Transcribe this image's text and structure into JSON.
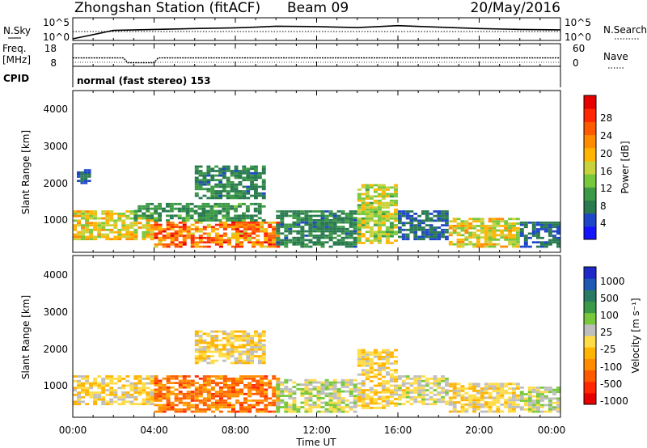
{
  "header": {
    "station": "Zhongshan Station (fitACF)",
    "beam": "Beam 09",
    "date": "20/May/2016"
  },
  "sky_panel": {
    "left_label": "N.Sky",
    "right_label": "N.Search",
    "tick_top": "10^5",
    "tick_bottom": "10^0",
    "right_tick_top": "10^5",
    "right_tick_bottom": "10^0"
  },
  "freq_panel": {
    "left_label_top": "Freq.",
    "left_label_bottom": "[MHz]",
    "right_label": "Nave",
    "tick_top": "18",
    "tick_bottom": "8",
    "right_tick_top": "60",
    "right_tick_bottom": "0"
  },
  "cpid_panel": {
    "label": "CPID",
    "text": "normal (fast stereo) 153"
  },
  "time_axis": {
    "label": "Time UT",
    "ticks": [
      "00:00",
      "04:00",
      "08:00",
      "12:00",
      "16:00",
      "20:00",
      "00:00"
    ]
  },
  "power_panel": {
    "ylabel": "Slant Range [km]",
    "yticks": [
      "4000",
      "3000",
      "2000",
      "1000"
    ],
    "colorbar_label": "Power [dB]",
    "colorbar_ticks": [
      "28",
      "24",
      "20",
      "16",
      "12",
      "8",
      "4"
    ],
    "colorbar_colors": [
      "#1414ff",
      "#1e46c8",
      "#2a7a50",
      "#3c9a46",
      "#78c83c",
      "#c8d23c",
      "#ffb400",
      "#ff8c00",
      "#ff5a00",
      "#ff2800",
      "#e60000"
    ]
  },
  "velocity_panel": {
    "ylabel": "Slant Range [km]",
    "yticks": [
      "4000",
      "3000",
      "2000",
      "1000"
    ],
    "colorbar_label": "Velocity [m s⁻¹]",
    "colorbar_ticks": [
      "1000",
      "500",
      "100",
      "25",
      "-25",
      "-100",
      "-500",
      "-1000"
    ],
    "colorbar_colors": [
      "#1e2ac8",
      "#1e5ab4",
      "#2a7a64",
      "#3c9a46",
      "#78c83c",
      "#bebebe",
      "#ffdc46",
      "#ffb400",
      "#ff8c00",
      "#ff5a00",
      "#ff2800",
      "#e60000"
    ]
  },
  "chart_data": [
    {
      "type": "line",
      "title": "Zhongshan Station (fitACF) Beam 09",
      "xlabel": "Time UT",
      "xlim": [
        "00:00",
        "24:00"
      ],
      "yscale": "log",
      "series": [
        {
          "name": "N.Sky",
          "x": [
            0,
            2,
            4,
            6,
            8,
            9,
            10,
            12,
            14,
            15,
            16,
            18,
            20,
            22,
            24
          ],
          "values": [
            1,
            400,
            800,
            1500,
            2500,
            4000,
            8000,
            6000,
            3000,
            6000,
            12000,
            4000,
            1500,
            800,
            600
          ]
        },
        {
          "name": "N.Search",
          "x": [
            0,
            24
          ],
          "values": [
            1,
            1
          ]
        }
      ]
    },
    {
      "type": "line",
      "xlabel": "Time UT",
      "series": [
        {
          "name": "Freq. [MHz]",
          "x": [
            0,
            2.5,
            2.7,
            4,
            4.2,
            24
          ],
          "values": [
            11.5,
            11.5,
            9,
            9,
            11.5,
            11.5
          ]
        },
        {
          "name": "Nave",
          "x": [
            0,
            24
          ],
          "values": [
            15,
            15
          ]
        }
      ]
    },
    {
      "type": "heatmap",
      "ylabel": "Slant Range [km]",
      "zlabel": "Power [dB]",
      "xlim": [
        0,
        24
      ],
      "ylim": [
        180,
        4500
      ],
      "zlim": [
        0,
        32
      ],
      "blobs": [
        {
          "t": [
            0.0,
            4.0
          ],
          "r": [
            500,
            1300
          ],
          "peak": 22
        },
        {
          "t": [
            0.2,
            0.9
          ],
          "r": [
            2000,
            2400
          ],
          "peak": 8
        },
        {
          "t": [
            4.0,
            10.2
          ],
          "r": [
            300,
            1000
          ],
          "peak": 30
        },
        {
          "t": [
            3.0,
            9.5
          ],
          "r": [
            1000,
            1500
          ],
          "peak": 12
        },
        {
          "t": [
            6.0,
            9.5
          ],
          "r": [
            1600,
            2500
          ],
          "peak": 10
        },
        {
          "t": [
            10.0,
            14.0
          ],
          "r": [
            300,
            1300
          ],
          "peak": 10
        },
        {
          "t": [
            14.0,
            16.0
          ],
          "r": [
            400,
            2000
          ],
          "peak": 20
        },
        {
          "t": [
            16.0,
            18.5
          ],
          "r": [
            500,
            1300
          ],
          "peak": 8
        },
        {
          "t": [
            18.5,
            22.0
          ],
          "r": [
            300,
            1100
          ],
          "peak": 22
        },
        {
          "t": [
            22.0,
            24.0
          ],
          "r": [
            300,
            1000
          ],
          "peak": 8
        }
      ]
    },
    {
      "type": "heatmap",
      "ylabel": "Slant Range [km]",
      "zlabel": "Velocity [m s⁻¹]",
      "xlim": [
        0,
        24
      ],
      "ylim": [
        180,
        4500
      ],
      "zlim": [
        -1000,
        1000
      ],
      "blobs": [
        {
          "t": [
            0.0,
            4.0
          ],
          "r": [
            500,
            1300
          ],
          "peak": -100
        },
        {
          "t": [
            4.0,
            10.2
          ],
          "r": [
            300,
            1300
          ],
          "peak": -500
        },
        {
          "t": [
            6.0,
            9.5
          ],
          "r": [
            1600,
            2500
          ],
          "peak": -100
        },
        {
          "t": [
            10.0,
            14.0
          ],
          "r": [
            300,
            1200
          ],
          "peak": 100
        },
        {
          "t": [
            14.0,
            16.0
          ],
          "r": [
            400,
            2000
          ],
          "peak": -100
        },
        {
          "t": [
            16.0,
            18.5
          ],
          "r": [
            500,
            1300
          ],
          "peak": 25
        },
        {
          "t": [
            18.5,
            22.0
          ],
          "r": [
            300,
            1100
          ],
          "peak": -100
        },
        {
          "t": [
            22.0,
            24.0
          ],
          "r": [
            300,
            1000
          ],
          "peak": 100
        }
      ]
    }
  ]
}
